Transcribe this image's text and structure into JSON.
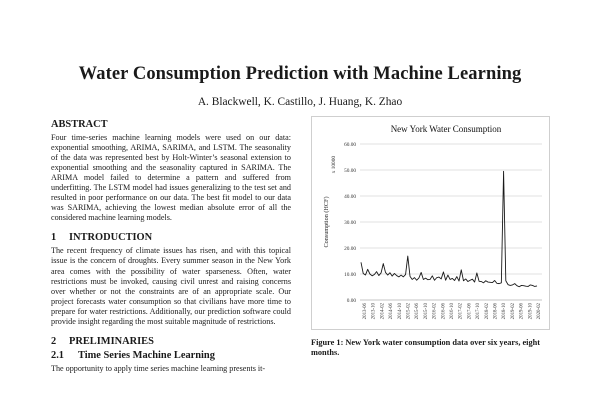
{
  "paper": {
    "title": "Water Consumption Prediction with Machine Learning",
    "authors": "A. Blackwell, K. Castillo, J. Huang, K. Zhao"
  },
  "abstract": {
    "heading": "ABSTRACT",
    "text": "Four time-series machine learning models were used on our data: exponential smoothing, ARIMA, SARIMA, and LSTM. The seasonality of the data was represented best by Holt-Winter’s seasonal extension to exponential smoothing and the seasonality captured in SARIMA. The ARIMA model failed to determine a pattern and suffered from underfitting. The LSTM model had issues generalizing to the test set and resulted in poor performance on our data. The best fit model to our data was SARIMA, achieving the lowest median absolute error of all the considered machine learning models."
  },
  "introduction": {
    "number": "1",
    "heading": "INTRODUCTION",
    "text": "The recent frequency of climate issues has risen, and with this topical issue is the concern of droughts. Every summer season in the New York area comes with the possibility of water sparseness. Often, water restrictions must be invoked, causing civil unrest and raising concerns over whether or not the constraints are of an appropriate scale. Our project forecasts water consumption so that civilians have more time to prepare for water restrictions. Additionally, our prediction software could provide insight regarding the most suitable magnitude of restrictions."
  },
  "preliminaries": {
    "number": "2",
    "heading": "PRELIMINARIES",
    "sub_number": "2.1",
    "sub_heading": "Time Series Machine Learning",
    "text": "The opportunity to apply time series machine learning presents it-"
  },
  "figure": {
    "caption": "Figure 1: New York water consumption data over six years, eight months."
  },
  "chart_data": {
    "type": "line",
    "title": "New York Water Consumption",
    "ylabel": "Consumption (HCF)",
    "y_multiplier": "x 10000",
    "ylim": [
      0,
      60
    ],
    "yticks": [
      "0.00",
      "10.00",
      "20.00",
      "30.00",
      "40.00",
      "50.00",
      "60.00"
    ],
    "xticks": [
      "2013-06",
      "2013-10",
      "2014-02",
      "2014-06",
      "2014-10",
      "2015-02",
      "2015-06",
      "2015-10",
      "2016-02",
      "2016-06",
      "2016-10",
      "2017-02",
      "2017-06",
      "2017-10",
      "2018-02",
      "2018-06",
      "2018-10",
      "2019-02",
      "2019-06",
      "2019-10",
      "2020-02"
    ],
    "grid": true,
    "line_color": "#1a1a1a",
    "series": [
      {
        "values": [
          14.5,
          10.2,
          9.6,
          11.8,
          10.0,
          9.3,
          9.8,
          10.9,
          9.4,
          10.4,
          14.0,
          10.6,
          9.6,
          10.5,
          9.2,
          10.2,
          9.4,
          8.9,
          9.6,
          8.9,
          9.8,
          16.9,
          9.1,
          7.9,
          8.6,
          7.6,
          8.5,
          10.6,
          7.9,
          8.4,
          7.8,
          7.9,
          9.3,
          7.6,
          8.6,
          8.8,
          8.1,
          10.8,
          7.6,
          9.6,
          7.9,
          8.3,
          7.5,
          9.0,
          7.3,
          11.6,
          7.4,
          8.1,
          7.1,
          7.6,
          8.0,
          6.9,
          10.4,
          7.2,
          7.1,
          6.6,
          7.4,
          6.9,
          6.8,
          6.7,
          7.5,
          6.4,
          6.3,
          6.6,
          49.5,
          7.4,
          5.9,
          5.6,
          5.8,
          6.3,
          5.5,
          5.1,
          5.6,
          5.5,
          5.3,
          5.2,
          5.8,
          5.6,
          5.2,
          5.4
        ]
      }
    ]
  }
}
